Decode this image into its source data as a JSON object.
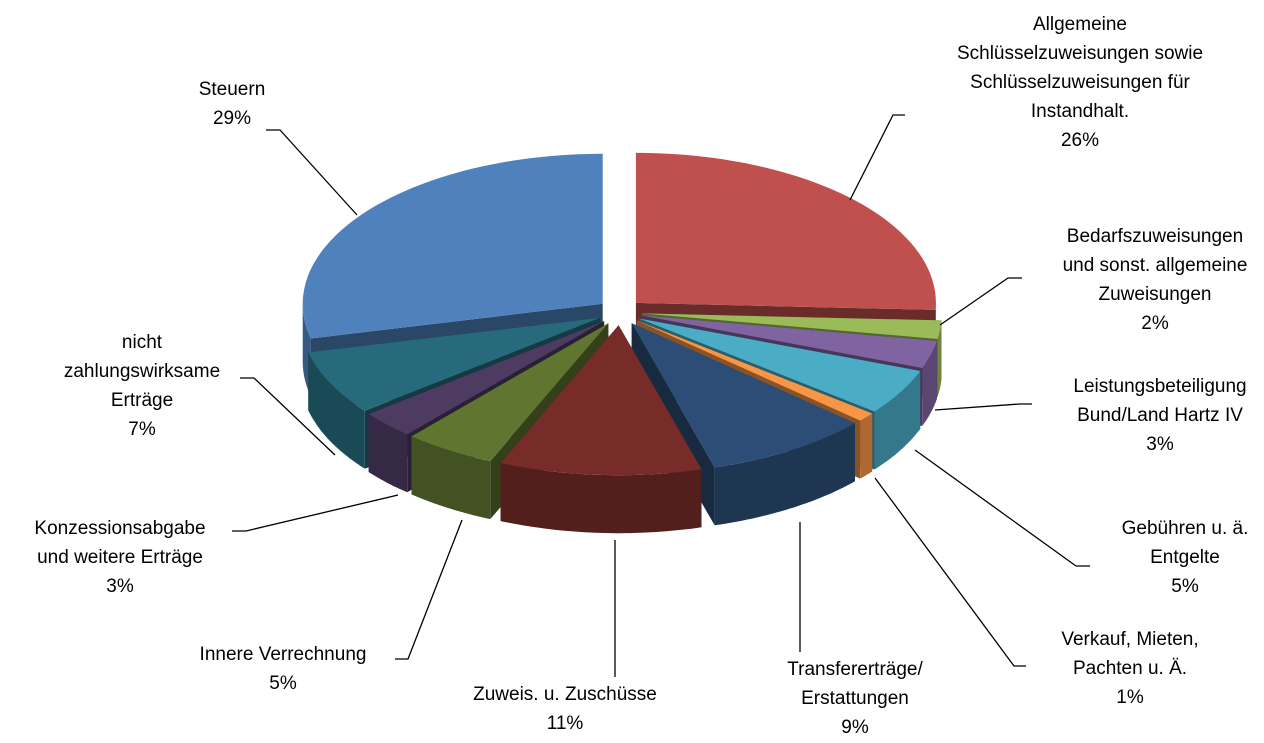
{
  "chart_data": {
    "type": "pie",
    "categories": [
      "Allgemeine\nSchlüsselzuweisungen sowie\nSchlüsselzuweisungen für\nInstandhalt.",
      "Bedarfszuweisungen\nund sonst. allgemeine\nZuweisungen",
      "Leistungsbeteiligung\nBund/Land Hartz IV",
      "Gebühren u. ä.\nEntgelte",
      "Verkauf, Mieten,\nPachten u. Ä.",
      "Transfererträge/\nErstattungen",
      "Zuweis. u. Zuschüsse",
      "Innere Verrechnung",
      "Konzessionsabgabe\nund weitere Erträge",
      "nicht\nzahlungswirksame\nErträge",
      "Steuern"
    ],
    "values": [
      26,
      2,
      3,
      5,
      1,
      9,
      11,
      5,
      3,
      7,
      29
    ],
    "value_labels": [
      "26%",
      "2%",
      "3%",
      "5%",
      "1%",
      "9%",
      "11%",
      "5%",
      "3%",
      "7%",
      "29%"
    ],
    "colors": [
      "#c0504d",
      "#9bbb59",
      "#8064a2",
      "#4bacc6",
      "#f79646",
      "#2c4d75",
      "#772c2a",
      "#5f7530",
      "#4d3b62",
      "#276a7c",
      "#4f81bd"
    ]
  }
}
